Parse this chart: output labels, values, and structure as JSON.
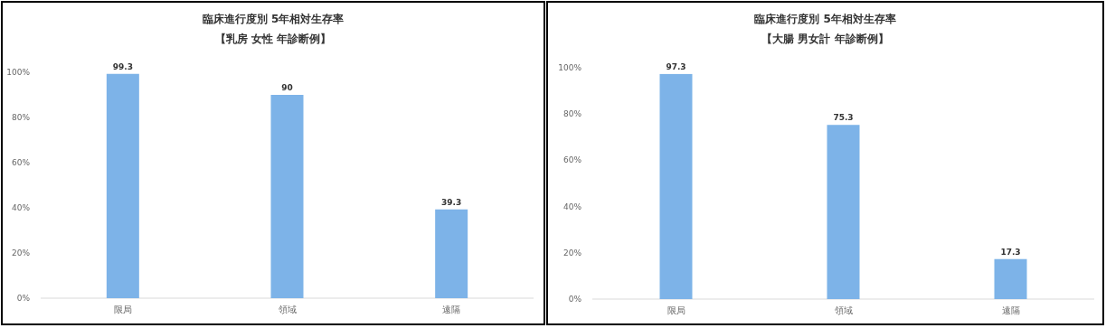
{
  "chart_data": [
    {
      "type": "bar",
      "title": "臨床進行度別 5年相対生存率",
      "subtitle": "【乳房 女性 年診断例】",
      "categories": [
        "限局",
        "領域",
        "遠隔"
      ],
      "values": [
        99.3,
        90,
        39.3
      ],
      "color": "#7db3e8",
      "ylim": [
        0,
        100
      ],
      "yticks": [
        {
          "value": 0,
          "label": "0%"
        },
        {
          "value": 20,
          "label": "20%"
        },
        {
          "value": 40,
          "label": "40%"
        },
        {
          "value": 60,
          "label": "60%"
        },
        {
          "value": 80,
          "label": "80%"
        },
        {
          "value": 100,
          "label": "100%"
        }
      ],
      "data_labels": true,
      "grid": false
    },
    {
      "type": "bar",
      "title": "臨床進行度別 5年相対生存率",
      "subtitle": "【大腸 男女計 年診断例】",
      "categories": [
        "限局",
        "領域",
        "遠隔"
      ],
      "values": [
        97.3,
        75.3,
        17.3
      ],
      "color": "#7db3e8",
      "ylim": [
        0,
        100
      ],
      "yticks": [
        {
          "value": 0,
          "label": "0%"
        },
        {
          "value": 20,
          "label": "20%"
        },
        {
          "value": 40,
          "label": "40%"
        },
        {
          "value": 60,
          "label": "60%"
        },
        {
          "value": 80,
          "label": "80%"
        },
        {
          "value": 100,
          "label": "100%"
        }
      ],
      "data_labels": true,
      "grid": false
    }
  ]
}
